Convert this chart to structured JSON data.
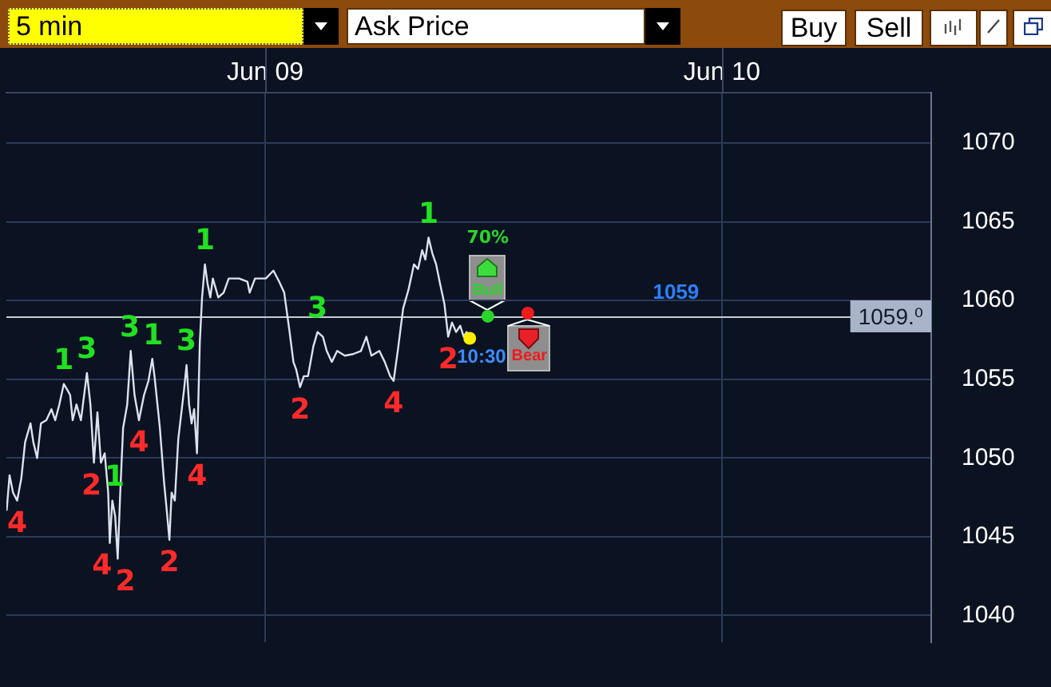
{
  "chart_data": {
    "type": "line",
    "xlim": [
      "--06-08T10:24",
      "--06-10T11:00"
    ],
    "xticks": [
      {
        "value": "--06-09",
        "label": "Jun 09"
      },
      {
        "value": "--06-10",
        "label": "Jun 10"
      }
    ],
    "ylim": [
      1038.3,
      1073.2
    ],
    "yticks": [
      1040,
      1045,
      1050,
      1055,
      1060,
      1065,
      1070
    ],
    "grid": true,
    "series": [
      {
        "color": "#dde3ee",
        "x": [
          "--06-08T10:25",
          "--06-08T10:34",
          "--06-08T10:45",
          "--06-08T10:58",
          "--06-08T11:11",
          "--06-08T11:23",
          "--06-08T11:40",
          "--06-08T11:49",
          "--06-08T12:01",
          "--06-08T12:13",
          "--06-08T12:30",
          "--06-08T12:46",
          "--06-08T12:58",
          "--06-08T13:11",
          "--06-08T13:25",
          "--06-08T13:37",
          "--06-08T13:45",
          "--06-08T13:53",
          "--06-08T14:05",
          "--06-08T14:19",
          "--06-08T14:38",
          "--06-08T14:49",
          "--06-08T15:00",
          "--06-08T15:11",
          "--06-08T15:22",
          "--06-08T15:34",
          "--06-08T15:45",
          "--06-08T15:50",
          "--06-08T15:58",
          "--06-08T16:07",
          "--06-08T16:15",
          "--06-08T16:23",
          "--06-08T16:32",
          "--06-08T16:45",
          "--06-08T16:56",
          "--06-08T17:08",
          "--06-08T17:22",
          "--06-08T17:38",
          "--06-08T17:52",
          "--06-08T18:04",
          "--06-08T18:11",
          "--06-08T18:28",
          "--06-08T18:41",
          "--06-08T18:50",
          "--06-08T18:58",
          "--06-08T19:05",
          "--06-08T19:15",
          "--06-08T19:26",
          "--06-08T19:44",
          "--06-08T19:52",
          "--06-08T20:00",
          "--06-08T20:08",
          "--06-08T20:16",
          "--06-08T20:25",
          "--06-08T20:34",
          "--06-08T20:41",
          "--06-08T20:50",
          "--06-08T20:58",
          "--06-08T21:07",
          "--06-08T21:15",
          "--06-08T21:32",
          "--06-08T21:49",
          "--06-08T22:05",
          "--06-08T22:38",
          "--06-08T23:04",
          "--06-08T23:11",
          "--06-08T23:28",
          "--06-09T00:02",
          "--06-09T00:26",
          "--06-09T00:44",
          "--06-09T01:00",
          "--06-09T01:17",
          "--06-09T01:29",
          "--06-09T01:38",
          "--06-09T01:50",
          "--06-09T02:02",
          "--06-09T02:15",
          "--06-09T02:32",
          "--06-09T02:45",
          "--06-09T03:02",
          "--06-09T03:14",
          "--06-09T03:30",
          "--06-09T03:47",
          "--06-09T04:11",
          "--06-09T04:37",
          "--06-09T05:02",
          "--06-09T05:19",
          "--06-09T05:35",
          "--06-09T06:00",
          "--06-09T06:17",
          "--06-09T06:34",
          "--06-09T06:45",
          "--06-09T06:58",
          "--06-09T07:15",
          "--06-09T07:32",
          "--06-09T07:49",
          "--06-09T08:02",
          "--06-09T08:15",
          "--06-09T08:25",
          "--06-09T08:35",
          "--06-09T08:47",
          "--06-09T08:59",
          "--06-09T09:11",
          "--06-09T09:25",
          "--06-09T09:37",
          "--06-09T09:49",
          "--06-09T10:02",
          "--06-09T10:15",
          "--06-09T10:26",
          "--06-09T10:35"
        ],
        "values": [
          1046.7,
          1048.9,
          1047.8,
          1047.3,
          1048.7,
          1051.0,
          1052.2,
          1051.0,
          1050.0,
          1052.2,
          1052.4,
          1053.1,
          1052.4,
          1053.4,
          1054.7,
          1054.3,
          1054.0,
          1052.4,
          1053.4,
          1052.4,
          1055.4,
          1053.4,
          1049.7,
          1052.9,
          1049.7,
          1050.3,
          1047.8,
          1044.6,
          1047.3,
          1046.3,
          1043.6,
          1047.8,
          1051.9,
          1053.4,
          1056.8,
          1054.0,
          1052.4,
          1054.0,
          1054.9,
          1056.3,
          1055.2,
          1051.9,
          1048.5,
          1046.6,
          1044.8,
          1047.8,
          1047.3,
          1051.2,
          1054.3,
          1055.9,
          1053.4,
          1052.2,
          1053.1,
          1050.3,
          1057.4,
          1060.2,
          1062.3,
          1061.1,
          1060.2,
          1061.4,
          1060.2,
          1060.5,
          1061.4,
          1061.4,
          1061.2,
          1060.5,
          1061.4,
          1061.4,
          1061.9,
          1061.2,
          1060.5,
          1058.0,
          1056.1,
          1055.6,
          1054.5,
          1055.2,
          1055.2,
          1057.1,
          1058.0,
          1057.7,
          1056.8,
          1056.1,
          1056.8,
          1056.5,
          1056.6,
          1056.8,
          1057.7,
          1056.5,
          1056.8,
          1056.1,
          1055.2,
          1054.9,
          1056.8,
          1059.5,
          1060.7,
          1062.3,
          1062.0,
          1063.2,
          1062.6,
          1064.0,
          1063.0,
          1062.3,
          1061.1,
          1059.8,
          1057.7,
          1058.6,
          1058.0,
          1058.4,
          1057.7,
          1058.0
        ]
      },
      {
        "type": "scatter",
        "name": "10:30",
        "color": "#ffee00",
        "marker": "circle",
        "x": [
          "--06-09T10:45"
        ],
        "values": [
          1057.6
        ]
      },
      {
        "type": "scatter",
        "name": "Bull",
        "color": "#2ad42a",
        "marker": "circle",
        "x": [
          "--06-09T11:42"
        ],
        "values": [
          1059.0
        ]
      },
      {
        "type": "scatter",
        "name": "Bear",
        "color": "#ee1c1c",
        "marker": "circle",
        "x": [
          "--06-09T13:48"
        ],
        "values": [
          1059.2
        ]
      }
    ],
    "ref_lines": [
      {
        "axis": "y",
        "value": 1059,
        "label": "1059",
        "color": "#c8ccd4"
      }
    ],
    "annotations": [
      "5 min",
      "Ask Price",
      "Buy",
      "Sell",
      "70%",
      {
        "text": "1059.⁰",
        "y": 1059
      },
      {
        "text": "4",
        "x": "--06-08T10:58",
        "y": 1047.3
      },
      {
        "text": "1",
        "x": "--06-08T13:25",
        "y": 1054.7
      },
      {
        "text": "3",
        "x": "--06-08T14:38",
        "y": 1055.4
      },
      {
        "text": "2",
        "x": "--06-08T15:00",
        "y": 1049.7
      },
      {
        "text": "4",
        "x": "--06-08T15:50",
        "y": 1044.6
      },
      {
        "text": "1",
        "x": "--06-08T15:58",
        "y": 1047.3
      },
      {
        "text": "2",
        "x": "--06-08T16:15",
        "y": 1043.6
      },
      {
        "text": "3",
        "x": "--06-08T16:56",
        "y": 1056.8
      },
      {
        "text": "4",
        "x": "--06-08T17:22",
        "y": 1052.4
      },
      {
        "text": "1",
        "x": "--06-08T18:04",
        "y": 1056.3
      },
      {
        "text": "2",
        "x": "--06-08T18:58",
        "y": 1044.8
      },
      {
        "text": "3",
        "x": "--06-08T19:52",
        "y": 1055.9
      },
      {
        "text": "4",
        "x": "--06-08T20:25",
        "y": 1050.3
      },
      {
        "text": "1",
        "x": "--06-08T20:50",
        "y": 1062.3
      },
      {
        "text": "2",
        "x": "--06-09T01:50",
        "y": 1054.5
      },
      {
        "text": "3",
        "x": "--06-09T02:45",
        "y": 1058.0
      },
      {
        "text": "4",
        "x": "--06-09T06:45",
        "y": 1054.9
      },
      {
        "text": "1",
        "x": "--06-09T08:35",
        "y": 1064.0
      },
      {
        "text": "2",
        "x": "--06-09T09:37",
        "y": 1057.7
      }
    ]
  }
}
